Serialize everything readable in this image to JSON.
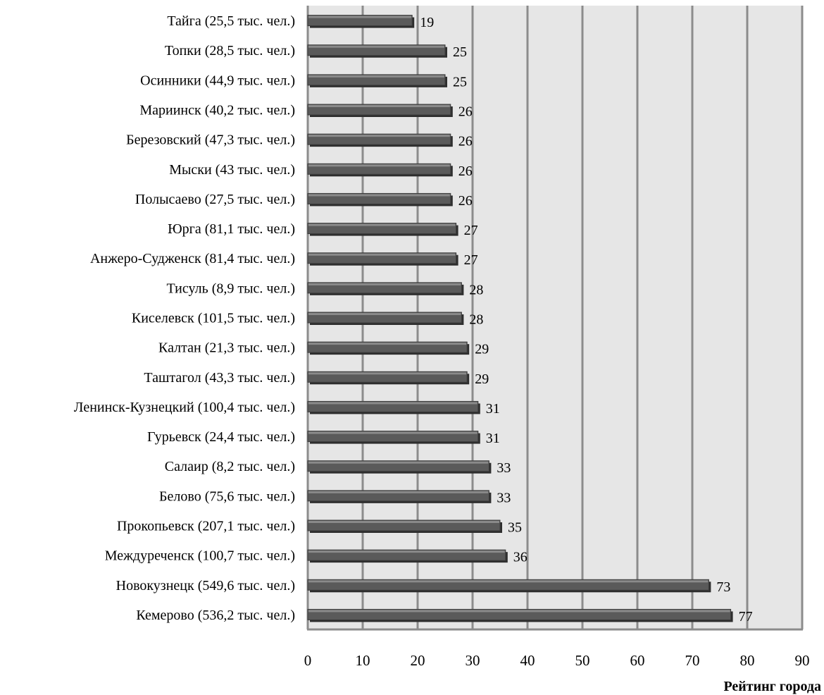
{
  "chart_data": {
    "type": "bar",
    "orientation": "horizontal",
    "categories": [
      "Тайга (25,5 тыс. чел.)",
      "Топки (28,5 тыс. чел.)",
      "Осинники (44,9 тыс. чел.)",
      "Мариинск (40,2 тыс. чел.)",
      "Березовский (47,3 тыс. чел.)",
      "Мыски (43 тыс. чел.)",
      "Полысаево (27,5 тыс. чел.)",
      "Юрга (81,1 тыс. чел.)",
      "Анжеро-Судженск (81,4 тыс. чел.)",
      "Тисуль (8,9 тыс. чел.)",
      "Киселевск (101,5 тыс. чел.)",
      "Калтан (21,3 тыс. чел.)",
      "Таштагол (43,3 тыс. чел.)",
      "Ленинск-Кузнецкий (100,4 тыс. чел.)",
      "Гурьевск (24,4 тыс. чел.)",
      "Салаир (8,2 тыс. чел.)",
      "Белово (75,6 тыс. чел.)",
      "Прокопьевск (207,1 тыс. чел.)",
      "Междуреченск (100,7 тыс. чел.)",
      "Новокузнецк (549,6 тыс. чел.)",
      "Кемерово (536,2 тыс. чел.)"
    ],
    "values": [
      19,
      25,
      25,
      26,
      26,
      26,
      26,
      27,
      27,
      28,
      28,
      29,
      29,
      31,
      31,
      33,
      33,
      35,
      36,
      73,
      77
    ],
    "xlabel": "Рейтинг города",
    "xlim": [
      0,
      90
    ],
    "xticks": [
      "0",
      "10",
      "20",
      "30",
      "40",
      "50",
      "60",
      "70",
      "80",
      "90"
    ],
    "grid": "vertical",
    "legend": "none",
    "colors": {
      "bar": "#5a5a5a",
      "bar_top": "#8a8a8a",
      "plot_background": "#e6e6e6",
      "gridline": "#8c8c8c"
    }
  }
}
